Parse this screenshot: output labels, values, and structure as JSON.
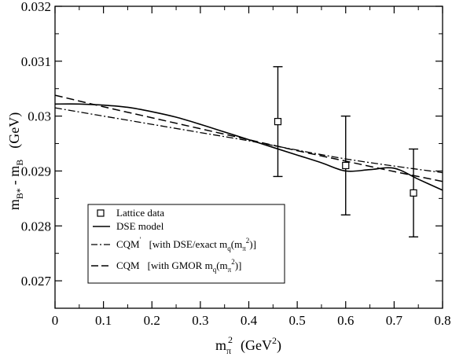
{
  "chart_data": {
    "type": "line",
    "title": "",
    "xlabel": {
      "main": "m",
      "sub": "π",
      "sup": "2",
      "unit_open": "(GeV",
      "unit_sup": "2",
      "unit_close": ")"
    },
    "ylabel": {
      "m1": "m",
      "s1": "B*",
      "dash": "- m",
      "s2": "B",
      "unit": "(GeV)"
    },
    "xlim": [
      0,
      0.8
    ],
    "ylim": [
      0.0265,
      0.032
    ],
    "xticks": [
      0,
      0.1,
      0.2,
      0.3,
      0.4,
      0.5,
      0.6,
      0.7,
      0.8
    ],
    "xtick_labels": [
      "0",
      "0.1",
      "0.2",
      "0.3",
      "0.4",
      "0.5",
      "0.6",
      "0.7",
      "0.8"
    ],
    "yticks": [
      0.027,
      0.028,
      0.029,
      0.03,
      0.031,
      0.032
    ],
    "ytick_labels": [
      "0.027",
      "0.028",
      "0.029",
      "0.03",
      "0.031",
      "0.032"
    ],
    "grid": false,
    "legend_position": "bottom-left",
    "series": [
      {
        "name": "Lattice data",
        "kind": "errorbar",
        "x": [
          0.46,
          0.6,
          0.74
        ],
        "y": [
          0.0299,
          0.0291,
          0.0286
        ],
        "yerr": [
          0.001,
          0.0009,
          0.0008
        ]
      },
      {
        "name": "DSE model",
        "kind": "solid",
        "x": [
          0,
          0.05,
          0.1,
          0.15,
          0.2,
          0.25,
          0.3,
          0.35,
          0.4,
          0.45,
          0.5,
          0.55,
          0.6,
          0.65,
          0.7,
          0.75,
          0.8
        ],
        "y": [
          0.03022,
          0.03022,
          0.0302,
          0.03016,
          0.03008,
          0.02998,
          0.02985,
          0.02971,
          0.02957,
          0.02943,
          0.02929,
          0.02915,
          0.029,
          0.02934,
          0.02905,
          0.02885,
          0.02865
        ]
      },
      {
        "name_parts": [
          "CQM",
          "′",
          "[with DSE/exact m",
          "q",
          "(m",
          "π",
          "2",
          ")]"
        ],
        "kind": "dashdot",
        "x": [
          0,
          0.1,
          0.2,
          0.3,
          0.4,
          0.5,
          0.6,
          0.7,
          0.8
        ],
        "y": [
          0.03015,
          0.03,
          0.02985,
          0.0297,
          0.02955,
          0.02938,
          0.02922,
          0.02909,
          0.02897
        ]
      },
      {
        "name_parts": [
          "CQM",
          "[with GMOR m",
          "q",
          "(m",
          "π",
          "2",
          ")]"
        ],
        "kind": "dashed",
        "x": [
          0,
          0.1,
          0.2,
          0.3,
          0.4,
          0.5,
          0.6,
          0.7,
          0.8
        ],
        "y": [
          0.03038,
          0.03017,
          0.02997,
          0.02977,
          0.02957,
          0.02937,
          0.02918,
          0.02899,
          0.02881
        ]
      }
    ]
  }
}
